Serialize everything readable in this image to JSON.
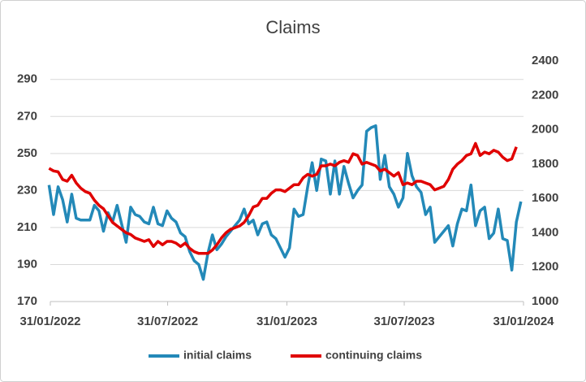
{
  "chart_data": {
    "type": "line",
    "title": "Claims",
    "x": [
      "29/01/2022",
      "05/02/2022",
      "12/02/2022",
      "19/02/2022",
      "26/02/2022",
      "05/03/2022",
      "12/03/2022",
      "19/03/2022",
      "26/03/2022",
      "02/04/2022",
      "09/04/2022",
      "16/04/2022",
      "23/04/2022",
      "30/04/2022",
      "07/05/2022",
      "14/05/2022",
      "21/05/2022",
      "28/05/2022",
      "04/06/2022",
      "11/06/2022",
      "18/06/2022",
      "25/06/2022",
      "02/07/2022",
      "09/07/2022",
      "16/07/2022",
      "23/07/2022",
      "30/07/2022",
      "06/08/2022",
      "13/08/2022",
      "20/08/2022",
      "27/08/2022",
      "03/09/2022",
      "10/09/2022",
      "17/09/2022",
      "24/09/2022",
      "01/10/2022",
      "08/10/2022",
      "15/10/2022",
      "22/10/2022",
      "29/10/2022",
      "05/11/2022",
      "12/11/2022",
      "19/11/2022",
      "26/11/2022",
      "03/12/2022",
      "10/12/2022",
      "17/12/2022",
      "24/12/2022",
      "31/12/2022",
      "07/01/2023",
      "14/01/2023",
      "21/01/2023",
      "28/01/2023",
      "04/02/2023",
      "11/02/2023",
      "18/02/2023",
      "25/02/2023",
      "04/03/2023",
      "11/03/2023",
      "18/03/2023",
      "25/03/2023",
      "01/04/2023",
      "08/04/2023",
      "15/04/2023",
      "22/04/2023",
      "29/04/2023",
      "06/05/2023",
      "13/05/2023",
      "20/05/2023",
      "27/05/2023",
      "03/06/2023",
      "10/06/2023",
      "17/06/2023",
      "24/06/2023",
      "01/07/2023",
      "08/07/2023",
      "15/07/2023",
      "22/07/2023",
      "29/07/2023",
      "05/08/2023",
      "12/08/2023",
      "19/08/2023",
      "26/08/2023",
      "02/09/2023",
      "09/09/2023",
      "16/09/2023",
      "23/09/2023",
      "30/09/2023",
      "07/10/2023",
      "14/10/2023",
      "21/10/2023",
      "28/10/2023",
      "04/11/2023",
      "11/11/2023",
      "18/11/2023",
      "25/11/2023",
      "02/12/2023",
      "09/12/2023",
      "16/12/2023",
      "23/12/2023",
      "30/12/2023",
      "06/01/2024",
      "13/01/2024",
      "20/01/2024",
      "27/01/2024"
    ],
    "xlim": [
      "31/01/2022",
      "31/01/2024"
    ],
    "xticks": [
      "31/01/2022",
      "31/07/2022",
      "31/01/2023",
      "31/07/2023",
      "31/01/2024"
    ],
    "ylim": [
      170,
      300
    ],
    "yticks": [
      170,
      190,
      210,
      230,
      250,
      270,
      290
    ],
    "y2lim": [
      1000,
      2400
    ],
    "y2ticks": [
      1000,
      1200,
      1400,
      1600,
      1800,
      2000,
      2200,
      2400
    ],
    "grid": true,
    "legend": "bottom",
    "series": [
      {
        "name": "initial claims",
        "color": "#2389b8",
        "values": [
          233,
          217,
          232,
          225,
          213,
          228,
          215,
          214,
          214,
          214,
          222,
          219,
          208,
          218,
          213,
          222,
          212,
          202,
          221,
          217,
          216,
          213,
          212,
          221,
          212,
          211,
          219,
          215,
          213,
          207,
          205,
          197,
          192,
          190,
          182,
          196,
          206,
          198,
          201,
          205,
          208,
          211,
          214,
          220,
          212,
          214,
          206,
          212,
          213,
          206,
          204,
          199,
          194,
          199,
          220,
          216,
          217,
          232,
          245,
          230,
          247,
          246,
          228,
          246,
          228,
          243,
          234,
          226,
          230,
          233,
          262,
          264,
          265,
          236,
          249,
          232,
          228,
          221,
          226,
          250,
          238,
          232,
          229,
          217,
          221,
          202,
          205,
          208,
          211,
          200,
          212,
          220,
          219,
          233,
          211,
          219,
          221,
          204,
          207,
          220,
          204,
          203,
          187,
          213,
          224
        ]
      },
      {
        "name": "continuing claims",
        "color": "#e00000",
        "axis": "y2",
        "values": [
          1775,
          1760,
          1755,
          1710,
          1700,
          1735,
          1690,
          1660,
          1640,
          1630,
          1590,
          1560,
          1540,
          1500,
          1460,
          1440,
          1420,
          1400,
          1390,
          1370,
          1360,
          1350,
          1360,
          1320,
          1350,
          1330,
          1350,
          1350,
          1340,
          1320,
          1340,
          1310,
          1290,
          1280,
          1280,
          1280,
          1300,
          1330,
          1370,
          1400,
          1420,
          1430,
          1440,
          1460,
          1500,
          1550,
          1560,
          1600,
          1600,
          1630,
          1650,
          1650,
          1640,
          1660,
          1680,
          1680,
          1720,
          1740,
          1730,
          1740,
          1790,
          1790,
          1800,
          1790,
          1810,
          1820,
          1810,
          1860,
          1850,
          1800,
          1810,
          1800,
          1790,
          1760,
          1770,
          1750,
          1730,
          1750,
          1680,
          1690,
          1680,
          1700,
          1700,
          1690,
          1680,
          1650,
          1660,
          1670,
          1710,
          1770,
          1800,
          1820,
          1850,
          1860,
          1920,
          1850,
          1870,
          1860,
          1880,
          1870,
          1840,
          1820,
          1830,
          1900,
          null
        ]
      }
    ]
  }
}
